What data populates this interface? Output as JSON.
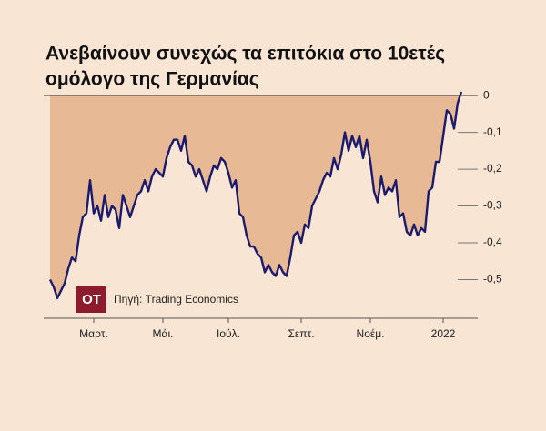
{
  "chart_data": {
    "type": "area",
    "title": [
      "Ανεβαίνουν συνεχώς τα επιτόκια στο 10ετές",
      "ομόλογο της Γερμανίας"
    ],
    "logo": "OT",
    "source": "Πηγή: Trading Economics",
    "categories": [
      null,
      null,
      null,
      null,
      null,
      null,
      null,
      null,
      null,
      null,
      null,
      null,
      "Μαρτ.",
      null,
      null,
      null,
      null,
      null,
      null,
      null,
      null,
      null,
      null,
      null,
      null,
      null,
      null,
      null,
      null,
      null,
      null,
      "Μάι.",
      null,
      null,
      null,
      null,
      null,
      null,
      null,
      null,
      null,
      null,
      null,
      null,
      null,
      null,
      null,
      null,
      null,
      "Ιούλ.",
      null,
      null,
      null,
      null,
      null,
      null,
      null,
      null,
      null,
      null,
      null,
      null,
      null,
      null,
      null,
      null,
      null,
      null,
      null,
      "Σεπτ.",
      null,
      null,
      null,
      null,
      null,
      null,
      null,
      null,
      null,
      null,
      null,
      null,
      null,
      null,
      null,
      null,
      null,
      null,
      "Νοέμ.",
      null,
      null,
      null,
      null,
      null,
      null,
      null,
      null,
      null,
      null,
      null,
      null,
      null,
      null,
      null,
      null,
      null,
      null,
      null,
      "2022",
      null,
      null,
      null,
      null,
      null
    ],
    "values": [
      -0.5,
      -0.52,
      -0.55,
      -0.53,
      -0.51,
      -0.47,
      -0.44,
      -0.45,
      -0.38,
      -0.33,
      -0.32,
      -0.23,
      -0.32,
      -0.3,
      -0.34,
      -0.27,
      -0.33,
      -0.3,
      -0.31,
      -0.36,
      -0.27,
      -0.3,
      -0.33,
      -0.3,
      -0.27,
      -0.26,
      -0.23,
      -0.26,
      -0.22,
      -0.2,
      -0.21,
      -0.22,
      -0.17,
      -0.14,
      -0.12,
      -0.12,
      -0.15,
      -0.11,
      -0.18,
      -0.19,
      -0.22,
      -0.2,
      -0.23,
      -0.26,
      -0.22,
      -0.19,
      -0.2,
      -0.17,
      -0.18,
      -0.21,
      -0.25,
      -0.23,
      -0.32,
      -0.33,
      -0.38,
      -0.41,
      -0.41,
      -0.43,
      -0.44,
      -0.48,
      -0.46,
      -0.48,
      -0.49,
      -0.46,
      -0.48,
      -0.49,
      -0.44,
      -0.38,
      -0.37,
      -0.4,
      -0.35,
      -0.36,
      -0.3,
      -0.28,
      -0.26,
      -0.23,
      -0.21,
      -0.22,
      -0.17,
      -0.2,
      -0.16,
      -0.1,
      -0.15,
      -0.11,
      -0.14,
      -0.11,
      -0.17,
      -0.12,
      -0.18,
      -0.26,
      -0.29,
      -0.22,
      -0.27,
      -0.25,
      -0.26,
      -0.23,
      -0.33,
      -0.32,
      -0.37,
      -0.38,
      -0.35,
      -0.38,
      -0.36,
      -0.37,
      -0.26,
      -0.25,
      -0.18,
      -0.18,
      -0.11,
      -0.04,
      -0.05,
      -0.09,
      -0.02,
      0.01
    ],
    "color": "#1c1a6b",
    "area_color": "#e8b995",
    "ylim": [
      -0.6,
      0.02
    ],
    "yticks": [
      0,
      {
        "value": -0.1,
        "label": "-0,1"
      },
      {
        "value": -0.2,
        "label": "-0,2"
      },
      {
        "value": -0.3,
        "label": "-0,3"
      },
      {
        "value": -0.4,
        "label": "-0,4"
      },
      {
        "value": -0.5,
        "label": "-0,5"
      }
    ],
    "grid": true
  }
}
